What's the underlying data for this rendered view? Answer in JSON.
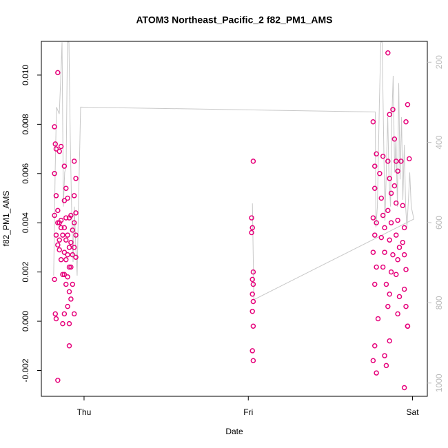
{
  "chart_data": {
    "type": "scatter",
    "title": "ATOM3 Northeast_Pacific_2 f82_PM1_AMS",
    "x_label": "Date",
    "y_label": "f82_PM1_AMS",
    "xlim": [
      -0.26,
      2.09
    ],
    "xticks": [
      {
        "value": 0,
        "label": "Thu"
      },
      {
        "value": 1,
        "label": "Fri"
      },
      {
        "value": 2,
        "label": "Sat"
      }
    ],
    "ylim": [
      -0.00305,
      0.01137
    ],
    "yticks": [
      {
        "value": -0.002,
        "label": "-0.002"
      },
      {
        "value": 0,
        "label": "0.000"
      },
      {
        "value": 0.002,
        "label": "0.002"
      },
      {
        "value": 0.004,
        "label": "0.004"
      },
      {
        "value": 0.006,
        "label": "0.006"
      },
      {
        "value": 0.008,
        "label": "0.008"
      },
      {
        "value": 0.01,
        "label": "0.010"
      }
    ],
    "y2lim": [
      1033,
      148
    ],
    "y2ticks": [
      200,
      400,
      600,
      800,
      1000
    ],
    "series": [
      {
        "type": "scatter",
        "color": "#e6007a",
        "x": [
          -0.18,
          -0.175,
          -0.17,
          -0.16,
          -0.15,
          -0.14,
          -0.18,
          -0.17,
          -0.18,
          -0.16,
          -0.15,
          -0.14,
          -0.13,
          -0.17,
          -0.16,
          -0.15,
          -0.14,
          -0.13,
          -0.18,
          -0.175,
          -0.17,
          -0.16,
          -0.12,
          -0.11,
          -0.12,
          -0.11,
          -0.12,
          -0.11,
          -0.12,
          -0.11,
          -0.12,
          -0.11,
          -0.13,
          -0.12,
          -0.1,
          -0.09,
          -0.1,
          -0.09,
          -0.1,
          -0.09,
          -0.1,
          -0.09,
          -0.1,
          -0.09,
          -0.09,
          -0.08,
          -0.07,
          -0.08,
          -0.07,
          -0.08,
          -0.07,
          -0.08,
          -0.06,
          -0.05,
          -0.06,
          -0.05,
          -0.06,
          -0.05,
          -0.06,
          -0.05,
          -0.06,
          -0.16,
          -0.15,
          -0.14,
          1.03,
          1.02,
          1.025,
          1.02,
          1.03,
          1.025,
          1.03,
          1.025,
          1.03,
          1.025,
          1.03,
          1.025,
          1.03,
          1.76,
          1.77,
          1.78,
          1.77,
          1.76,
          1.78,
          1.77,
          1.76,
          1.78,
          1.77,
          1.76,
          1.77,
          1.78,
          1.79,
          1.8,
          1.82,
          1.81,
          1.82,
          1.83,
          1.81,
          1.83,
          1.82,
          1.84,
          1.83,
          1.84,
          1.85,
          1.86,
          1.85,
          1.86,
          1.87,
          1.85,
          1.87,
          1.86,
          1.88,
          1.87,
          1.86,
          1.85,
          1.86,
          1.88,
          1.89,
          1.9,
          1.91,
          1.89,
          1.9,
          1.91,
          1.9,
          1.92,
          1.91,
          1.9,
          1.92,
          1.91,
          1.93,
          1.94,
          1.95,
          1.94,
          1.95,
          1.96,
          1.95,
          1.96,
          1.97,
          1.95,
          1.97,
          1.96,
          1.98,
          1.97
        ],
        "values": [
          0.0079,
          0.0072,
          0.007,
          0.0101,
          0.0069,
          0.0071,
          0.006,
          0.0051,
          0.0043,
          0.0045,
          0.004,
          0.0038,
          0.0035,
          0.0035,
          0.0031,
          0.0029,
          0.0025,
          0.0019,
          0.0017,
          0.0003,
          0.0001,
          -0.0024,
          0.0063,
          0.0054,
          0.0049,
          0.0042,
          0.0038,
          0.0033,
          0.0028,
          0.0025,
          0.0019,
          0.0015,
          -0.0001,
          0.0003,
          0.005,
          0.0042,
          0.0035,
          0.003,
          0.0027,
          0.0022,
          0.0018,
          0.0012,
          0.0006,
          -0.0001,
          -0.001,
          0.0043,
          0.0037,
          0.0032,
          0.0027,
          0.0022,
          0.0015,
          0.0009,
          0.0065,
          0.0058,
          0.0051,
          0.0044,
          0.004,
          0.0035,
          0.003,
          0.0026,
          0.0003,
          0.004,
          0.0033,
          0.0041,
          0.0065,
          0.0042,
          0.0038,
          0.0036,
          0.002,
          0.0017,
          0.0015,
          0.0011,
          0.0008,
          0.0004,
          -0.0002,
          -0.0012,
          -0.0016,
          0.0081,
          0.0063,
          0.0068,
          0.0054,
          0.0042,
          0.004,
          0.0035,
          0.0028,
          0.0022,
          0.0015,
          -0.0016,
          -0.001,
          -0.0021,
          0.0001,
          0.006,
          0.0067,
          0.005,
          0.0043,
          0.0038,
          0.0034,
          0.0028,
          0.0022,
          0.0015,
          -0.0014,
          -0.0018,
          0.0109,
          0.0084,
          0.0065,
          0.0058,
          0.0052,
          0.0045,
          0.004,
          0.0033,
          0.0027,
          0.002,
          0.0011,
          0.0006,
          -0.0008,
          0.0086,
          0.0074,
          0.0065,
          0.0061,
          0.0055,
          0.0048,
          0.0041,
          0.0035,
          0.003,
          0.0025,
          0.0019,
          0.001,
          0.0003,
          0.0065,
          0.0047,
          0.0038,
          0.0032,
          0.0027,
          0.0021,
          0.0013,
          0.0006,
          -0.0002,
          -0.0027,
          0.0088,
          0.0081,
          0.0066,
          -0.0002
        ]
      },
      {
        "type": "line",
        "color": "#c8c8c8",
        "axis": "y2",
        "x": [
          -0.185,
          -0.176,
          -0.168,
          -0.151,
          -0.143,
          -0.134,
          -0.126,
          -0.118,
          -0.109,
          -0.101,
          -0.092,
          -0.084,
          -0.076,
          -0.067,
          -0.059,
          -0.05,
          -0.042,
          -0.034,
          -0.025,
          -0.021,
          1.773,
          1.777,
          1.786,
          1.798,
          1.807,
          1.815,
          1.824,
          1.832,
          1.84,
          1.849,
          1.857,
          1.866,
          1.874,
          1.882,
          1.891,
          1.899,
          1.908,
          1.916,
          1.924,
          1.933,
          1.941,
          1.95,
          1.958,
          1.966,
          1.975,
          1.983,
          1.992,
          2.008,
          1.034,
          1.025
        ],
        "values": [
          732,
          475,
          312,
          329,
          252,
          150,
          560,
          475,
          458,
          150,
          150,
          389,
          560,
          698,
          560,
          664,
          732,
          560,
          389,
          312,
          324,
          612,
          560,
          303,
          150,
          150,
          389,
          595,
          475,
          337,
          492,
          560,
          337,
          234,
          475,
          389,
          560,
          252,
          492,
          337,
          543,
          406,
          560,
          612,
          543,
          475,
          560,
          591,
          792,
          552
        ]
      }
    ]
  }
}
